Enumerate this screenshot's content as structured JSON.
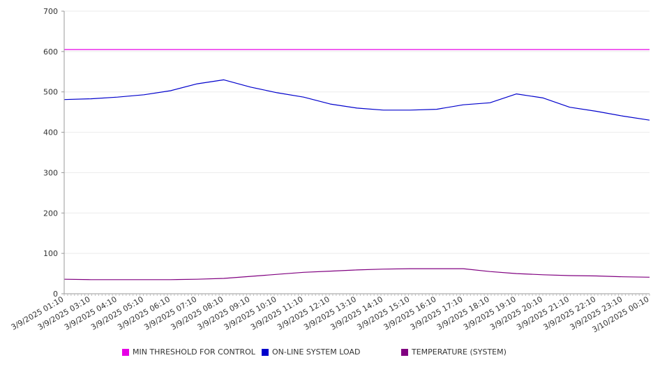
{
  "chart_data": {
    "type": "line",
    "ylim": [
      0,
      700
    ],
    "y_ticks": [
      0,
      100,
      200,
      300,
      400,
      500,
      600,
      700
    ],
    "grid": true,
    "legend_position": "bottom",
    "x_tick_labels": [
      "3/9/2025 01:10",
      "3/9/2025 03:10",
      "3/9/2025 04:10",
      "3/9/2025 05:10",
      "3/9/2025 06:10",
      "3/9/2025 07:10",
      "3/9/2025 08:10",
      "3/9/2025 09:10",
      "3/9/2025 10:10",
      "3/9/2025 11:10",
      "3/9/2025 12:10",
      "3/9/2025 13:10",
      "3/9/2025 14:10",
      "3/9/2025 15:10",
      "3/9/2025 16:10",
      "3/9/2025 17:10",
      "3/9/2025 18:10",
      "3/9/2025 19:10",
      "3/9/2025 20:10",
      "3/9/2025 21:10",
      "3/9/2025 22:10",
      "3/9/2025 23:10",
      "3/10/2025 00:10"
    ],
    "series": [
      {
        "name": "MIN THRESHOLD FOR CONTROL",
        "color": "#e600e6",
        "values": [
          605,
          605,
          605,
          605,
          605,
          605,
          605,
          605,
          605,
          605,
          605,
          605,
          605,
          605,
          605,
          605,
          605,
          605,
          605,
          605,
          605,
          605,
          605
        ]
      },
      {
        "name": "ON-LINE SYSTEM LOAD",
        "color": "#0000cc",
        "values": [
          481,
          483,
          487,
          493,
          503,
          520,
          530,
          512,
          498,
          487,
          470,
          460,
          455,
          455,
          457,
          468,
          473,
          495,
          485,
          462,
          452,
          440,
          430
        ]
      },
      {
        "name": "TEMPERATURE (SYSTEM)",
        "color": "#800080",
        "values": [
          36,
          35,
          35,
          35,
          35,
          36,
          38,
          43,
          48,
          53,
          56,
          59,
          61,
          62,
          62,
          62,
          55,
          50,
          47,
          45,
          44,
          42,
          41
        ]
      }
    ]
  }
}
